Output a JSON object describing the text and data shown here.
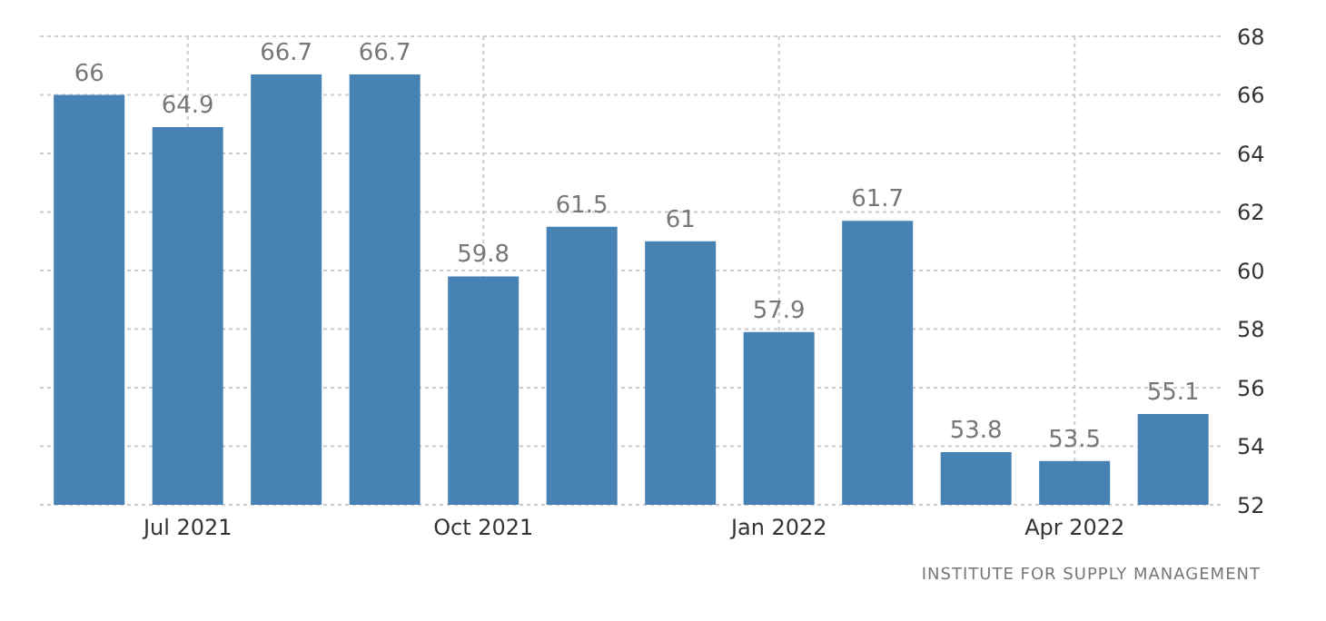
{
  "chart_data": {
    "type": "bar",
    "categories": [
      null,
      "Jul 2021",
      null,
      null,
      "Oct 2021",
      null,
      null,
      "Jan 2022",
      null,
      null,
      "Apr 2022",
      null
    ],
    "values": [
      66,
      64.9,
      66.7,
      66.7,
      59.8,
      61.5,
      61,
      57.9,
      61.7,
      53.8,
      53.5,
      55.1
    ],
    "color": "#4682b4",
    "ylim": [
      52,
      68
    ],
    "yticks": [
      52,
      54,
      56,
      58,
      60,
      62,
      64,
      66,
      68
    ],
    "grid": true,
    "data_labels": true,
    "annotations": [
      "INSTITUTE FOR SUPPLY MANAGEMENT"
    ]
  }
}
